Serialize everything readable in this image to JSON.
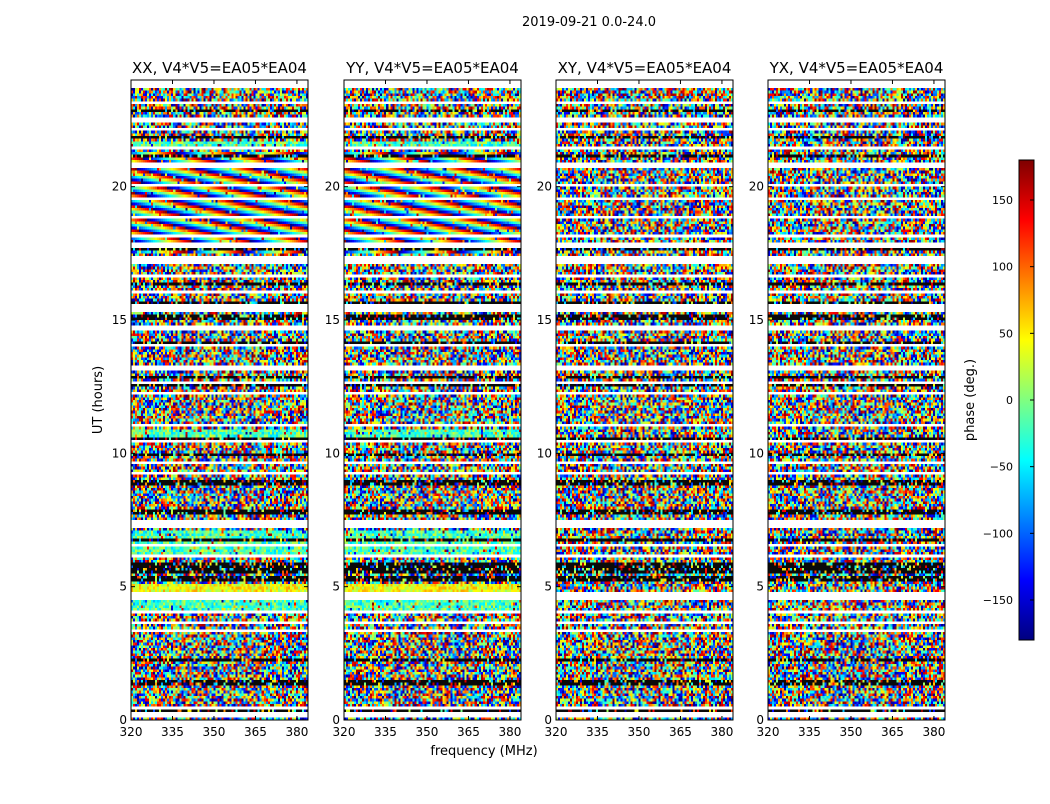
{
  "figure": {
    "suptitle": "2019-09-21 0.0-24.0",
    "xlabel": "frequency (MHz)",
    "ylabel": "UT (hours)",
    "colorbar_label": "phase (deg.)",
    "colorbar_ticks": [
      150,
      100,
      50,
      0,
      -50,
      -100,
      -150
    ],
    "colorbar_range": [
      -180,
      180
    ],
    "colormap": "jet",
    "colormap_stops": [
      "#00007f",
      "#0000ff",
      "#0080ff",
      "#00ffff",
      "#80ff80",
      "#ffff00",
      "#ff8000",
      "#ff0000",
      "#7f0000"
    ]
  },
  "chart_data": [
    {
      "type": "heatmap",
      "title": "XX, V4*V5=EA05*EA04",
      "x_ticks": [
        320,
        335,
        350,
        365,
        380
      ],
      "y_ticks": [
        0,
        5,
        10,
        15,
        20
      ],
      "xlim": [
        320,
        384
      ],
      "ylim": [
        0,
        24
      ],
      "pattern": "random phase noise with horizontal flagged gaps; fringe stripes near 17.5-21 h; smoother cyan/yellow bands near 4-7 h and 10.5 h"
    },
    {
      "type": "heatmap",
      "title": "YY, V4*V5=EA05*EA04",
      "x_ticks": [
        320,
        335,
        350,
        365,
        380
      ],
      "y_ticks": [
        0,
        5,
        10,
        15,
        20
      ],
      "xlim": [
        320,
        384
      ],
      "ylim": [
        0,
        24
      ],
      "pattern": "random phase noise with horizontal flagged gaps; fringe stripes near 17.5-21 h; smoother cyan/yellow bands near 4-7 h and 10.5 h"
    },
    {
      "type": "heatmap",
      "title": "XY, V4*V5=EA05*EA04",
      "x_ticks": [
        320,
        335,
        350,
        365,
        380
      ],
      "y_ticks": [
        0,
        5,
        10,
        15,
        20
      ],
      "xlim": [
        320,
        384
      ],
      "ylim": [
        0,
        24
      ],
      "pattern": "random phase noise with horizontal flagged gaps"
    },
    {
      "type": "heatmap",
      "title": "YX, V4*V5=EA05*EA04",
      "x_ticks": [
        320,
        335,
        350,
        365,
        380
      ],
      "y_ticks": [
        0,
        5,
        10,
        15,
        20
      ],
      "xlim": [
        320,
        384
      ],
      "ylim": [
        0,
        24
      ],
      "pattern": "random phase noise with horizontal flagged gaps"
    }
  ]
}
